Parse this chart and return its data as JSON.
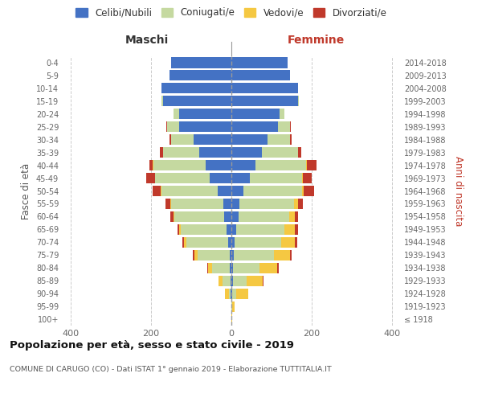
{
  "age_groups": [
    "100+",
    "95-99",
    "90-94",
    "85-89",
    "80-84",
    "75-79",
    "70-74",
    "65-69",
    "60-64",
    "55-59",
    "50-54",
    "45-49",
    "40-44",
    "35-39",
    "30-34",
    "25-29",
    "20-24",
    "15-19",
    "10-14",
    "5-9",
    "0-4"
  ],
  "birth_years": [
    "≤ 1918",
    "1919-1923",
    "1924-1928",
    "1929-1933",
    "1934-1938",
    "1939-1943",
    "1944-1948",
    "1949-1953",
    "1954-1958",
    "1959-1963",
    "1964-1968",
    "1969-1973",
    "1974-1978",
    "1979-1983",
    "1984-1988",
    "1989-1993",
    "1994-1998",
    "1999-2003",
    "2004-2008",
    "2009-2013",
    "2014-2018"
  ],
  "males": {
    "celibi": [
      0,
      0,
      2,
      3,
      4,
      5,
      8,
      12,
      18,
      20,
      35,
      55,
      65,
      80,
      95,
      130,
      130,
      170,
      175,
      155,
      150
    ],
    "coniugati": [
      0,
      0,
      5,
      20,
      45,
      80,
      105,
      115,
      125,
      130,
      140,
      135,
      130,
      90,
      55,
      30,
      15,
      5,
      0,
      0,
      0
    ],
    "vedovi": [
      0,
      1,
      10,
      10,
      10,
      8,
      5,
      3,
      2,
      2,
      2,
      1,
      1,
      0,
      0,
      0,
      0,
      0,
      0,
      0,
      0
    ],
    "divorziati": [
      0,
      0,
      0,
      0,
      2,
      3,
      4,
      5,
      8,
      12,
      20,
      22,
      8,
      8,
      5,
      2,
      0,
      0,
      0,
      0,
      0
    ]
  },
  "females": {
    "nubili": [
      0,
      0,
      2,
      3,
      4,
      5,
      8,
      12,
      18,
      20,
      30,
      45,
      60,
      75,
      90,
      115,
      120,
      165,
      165,
      145,
      140
    ],
    "coniugate": [
      0,
      2,
      10,
      35,
      65,
      100,
      115,
      120,
      125,
      135,
      145,
      130,
      125,
      90,
      55,
      30,
      12,
      3,
      0,
      0,
      0
    ],
    "vedove": [
      1,
      5,
      30,
      40,
      45,
      40,
      35,
      25,
      15,
      10,
      5,
      3,
      2,
      1,
      0,
      0,
      0,
      0,
      0,
      0,
      0
    ],
    "divorziate": [
      0,
      0,
      0,
      2,
      3,
      5,
      5,
      8,
      8,
      12,
      25,
      22,
      25,
      8,
      5,
      2,
      0,
      0,
      0,
      0,
      0
    ]
  },
  "colors": {
    "celibi_nubili": "#4472c4",
    "coniugati": "#c5d9a0",
    "vedovi": "#f5c842",
    "divorziati": "#c0392b"
  },
  "xlim": [
    -420,
    420
  ],
  "xlabel_ticks": [
    -400,
    -200,
    0,
    200,
    400
  ],
  "xlabel_labels": [
    "400",
    "200",
    "0",
    "200",
    "400"
  ],
  "title": "Popolazione per età, sesso e stato civile - 2019",
  "subtitle": "COMUNE DI CARUGO (CO) - Dati ISTAT 1° gennaio 2019 - Elaborazione TUTTITALIA.IT",
  "ylabel_left": "Fasce di età",
  "ylabel_right": "Anni di nascita",
  "legend_labels": [
    "Celibi/Nubili",
    "Coniugati/e",
    "Vedovi/e",
    "Divorziati/e"
  ],
  "maschi_label": "Maschi",
  "femmine_label": "Femmine",
  "background_color": "#ffffff",
  "grid_color": "#cccccc"
}
